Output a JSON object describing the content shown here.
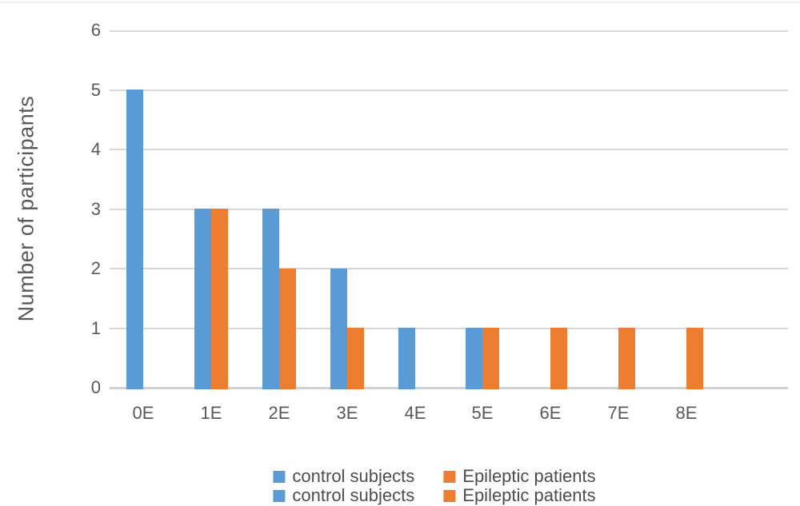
{
  "chart_data": {
    "type": "bar",
    "title": "",
    "ylabel": "Number of participants",
    "xlabel": "",
    "categories": [
      "0E",
      "1E",
      "2E",
      "3E",
      "4E",
      "5E",
      "6E",
      "7E",
      "8E"
    ],
    "series": [
      {
        "name": "control subjects",
        "color": "#5B9BD5",
        "values": [
          5,
          3,
          3,
          2,
          1,
          1,
          0,
          0,
          0
        ]
      },
      {
        "name": "Epileptic patients",
        "color": "#ED7D31",
        "values": [
          0,
          3,
          2,
          1,
          0,
          1,
          1,
          1,
          1
        ]
      }
    ],
    "ylim": [
      0,
      6
    ],
    "yticks": [
      0,
      1,
      2,
      3,
      4,
      5,
      6
    ],
    "grid": true,
    "legend_position": "bottom",
    "gridline_color": "#D9D9D9",
    "axis_text_color": "#595959",
    "empty_trailing_slots": 1
  }
}
